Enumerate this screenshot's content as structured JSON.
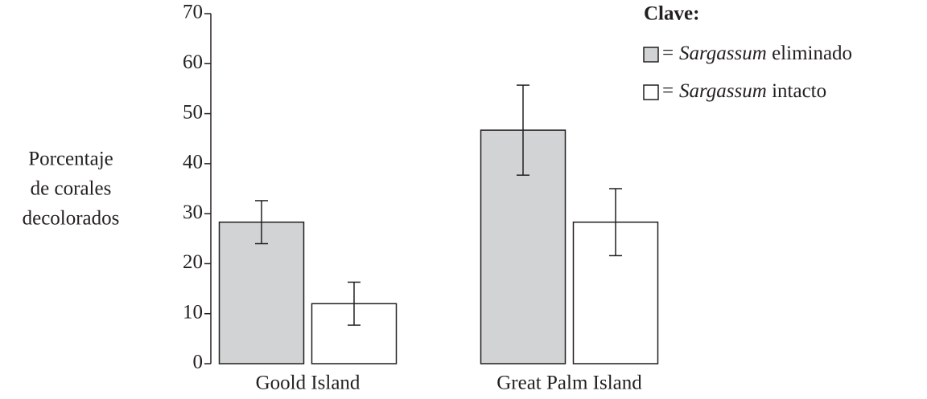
{
  "chart_data": {
    "type": "bar",
    "ylabel": [
      "Porcentaje",
      "de corales",
      "decolorados"
    ],
    "categories": [
      "Goold Island",
      "Great Palm Island"
    ],
    "series": [
      {
        "name": "Sargassum eliminado",
        "color": "#d1d3d4",
        "values": [
          28.3,
          46.7
        ],
        "errors": [
          4.3,
          9
        ]
      },
      {
        "name": "Sargassum intacto",
        "color": "#ffffff",
        "values": [
          12,
          28.3
        ],
        "errors": [
          4.3,
          6.7
        ]
      }
    ],
    "ylim": [
      0,
      70
    ],
    "yticks": [
      0,
      10,
      20,
      30,
      40,
      50,
      60,
      70
    ],
    "legend_title": "Clave:",
    "legend_separator": "=",
    "legend_position": "upper right"
  }
}
